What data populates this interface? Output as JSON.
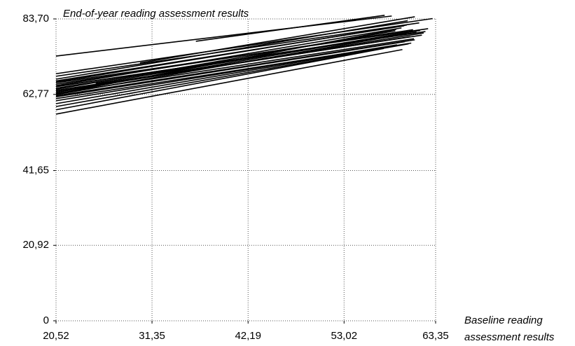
{
  "chart_data": {
    "type": "line",
    "title": "End-of-year reading assessment results",
    "xlabel": [
      "Baseline reading",
      "assessment results"
    ],
    "color": "#000000",
    "grid": true,
    "xlim": [
      20.52,
      63.35
    ],
    "xticks": [
      {
        "value": 20.52,
        "label": "20,52"
      },
      {
        "value": 31.35,
        "label": "31,35"
      },
      {
        "value": 42.19,
        "label": "42,19"
      },
      {
        "value": 53.02,
        "label": "53,02"
      },
      {
        "value": 63.35,
        "label": "63,35"
      }
    ],
    "ylim": [
      0,
      83.7
    ],
    "yticks": [
      0,
      {
        "value": 20.92,
        "label": "20,92"
      },
      {
        "value": 41.65,
        "label": "41,65"
      },
      {
        "value": 62.77,
        "label": "62,77"
      },
      {
        "value": 83.7,
        "label": "83,70"
      }
    ],
    "series": [
      {
        "x": [
          20.52,
          58.4
        ],
        "values": [
          73.4,
          84.5
        ]
      },
      {
        "x": [
          36.3,
          57.6
        ],
        "values": [
          77.5,
          84.7
        ]
      },
      {
        "x": [
          30.0,
          61.0
        ],
        "values": [
          71.5,
          84.3
        ]
      },
      {
        "x": [
          20.52,
          63.0
        ],
        "values": [
          68.5,
          83.8
        ]
      },
      {
        "x": [
          20.52,
          61.5
        ],
        "values": [
          67.8,
          82.6
        ]
      },
      {
        "x": [
          20.52,
          60.2
        ],
        "values": [
          67.0,
          83.2
        ]
      },
      {
        "x": [
          20.52,
          59.8
        ],
        "values": [
          66.5,
          81.8
        ]
      },
      {
        "x": [
          20.52,
          62.5
        ],
        "values": [
          66.0,
          81.0
        ]
      },
      {
        "x": [
          20.52,
          60.8
        ],
        "values": [
          65.6,
          80.7
        ]
      },
      {
        "x": [
          20.52,
          59.5
        ],
        "values": [
          65.2,
          81.2
        ]
      },
      {
        "x": [
          20.52,
          61.2
        ],
        "values": [
          64.9,
          80.0
        ]
      },
      {
        "x": [
          20.52,
          60.0
        ],
        "values": [
          64.5,
          79.6
        ]
      },
      {
        "x": [
          20.52,
          58.8
        ],
        "values": [
          64.2,
          80.4
        ]
      },
      {
        "x": [
          20.52,
          61.8
        ],
        "values": [
          63.9,
          79.2
        ]
      },
      {
        "x": [
          20.52,
          60.5
        ],
        "values": [
          63.6,
          78.8
        ]
      },
      {
        "x": [
          20.52,
          59.2
        ],
        "values": [
          63.3,
          79.5
        ]
      },
      {
        "x": [
          20.52,
          60.9
        ],
        "values": [
          63.0,
          78.2
        ]
      },
      {
        "x": [
          20.52,
          58.5
        ],
        "values": [
          62.7,
          78.9
        ]
      },
      {
        "x": [
          20.52,
          61.0
        ],
        "values": [
          62.4,
          77.9
        ]
      },
      {
        "x": [
          20.52,
          59.9
        ],
        "values": [
          62.1,
          77.4
        ]
      },
      {
        "x": [
          20.52,
          60.6
        ],
        "values": [
          61.6,
          77.0
        ]
      },
      {
        "x": [
          20.52,
          59.0
        ],
        "values": [
          61.0,
          76.5
        ]
      },
      {
        "x": [
          20.52,
          58.0
        ],
        "values": [
          60.2,
          76.0
        ]
      },
      {
        "x": [
          20.52,
          60.3
        ],
        "values": [
          59.4,
          76.8
        ]
      },
      {
        "x": [
          20.52,
          57.5
        ],
        "values": [
          58.5,
          75.5
        ]
      },
      {
        "x": [
          20.52,
          59.6
        ],
        "values": [
          57.3,
          75.2
        ]
      },
      {
        "x": [
          25.0,
          61.6
        ],
        "values": [
          65.8,
          80.5
        ]
      },
      {
        "x": [
          22.0,
          62.0
        ],
        "values": [
          64.0,
          79.8
        ]
      },
      {
        "x": [
          20.52,
          62.2
        ],
        "values": [
          65.0,
          80.2
        ]
      },
      {
        "x": [
          20.52,
          60.1
        ],
        "values": [
          66.2,
          82.0
        ]
      },
      {
        "x": [
          20.52,
          58.9
        ],
        "values": [
          62.9,
          80.8
        ]
      }
    ]
  }
}
